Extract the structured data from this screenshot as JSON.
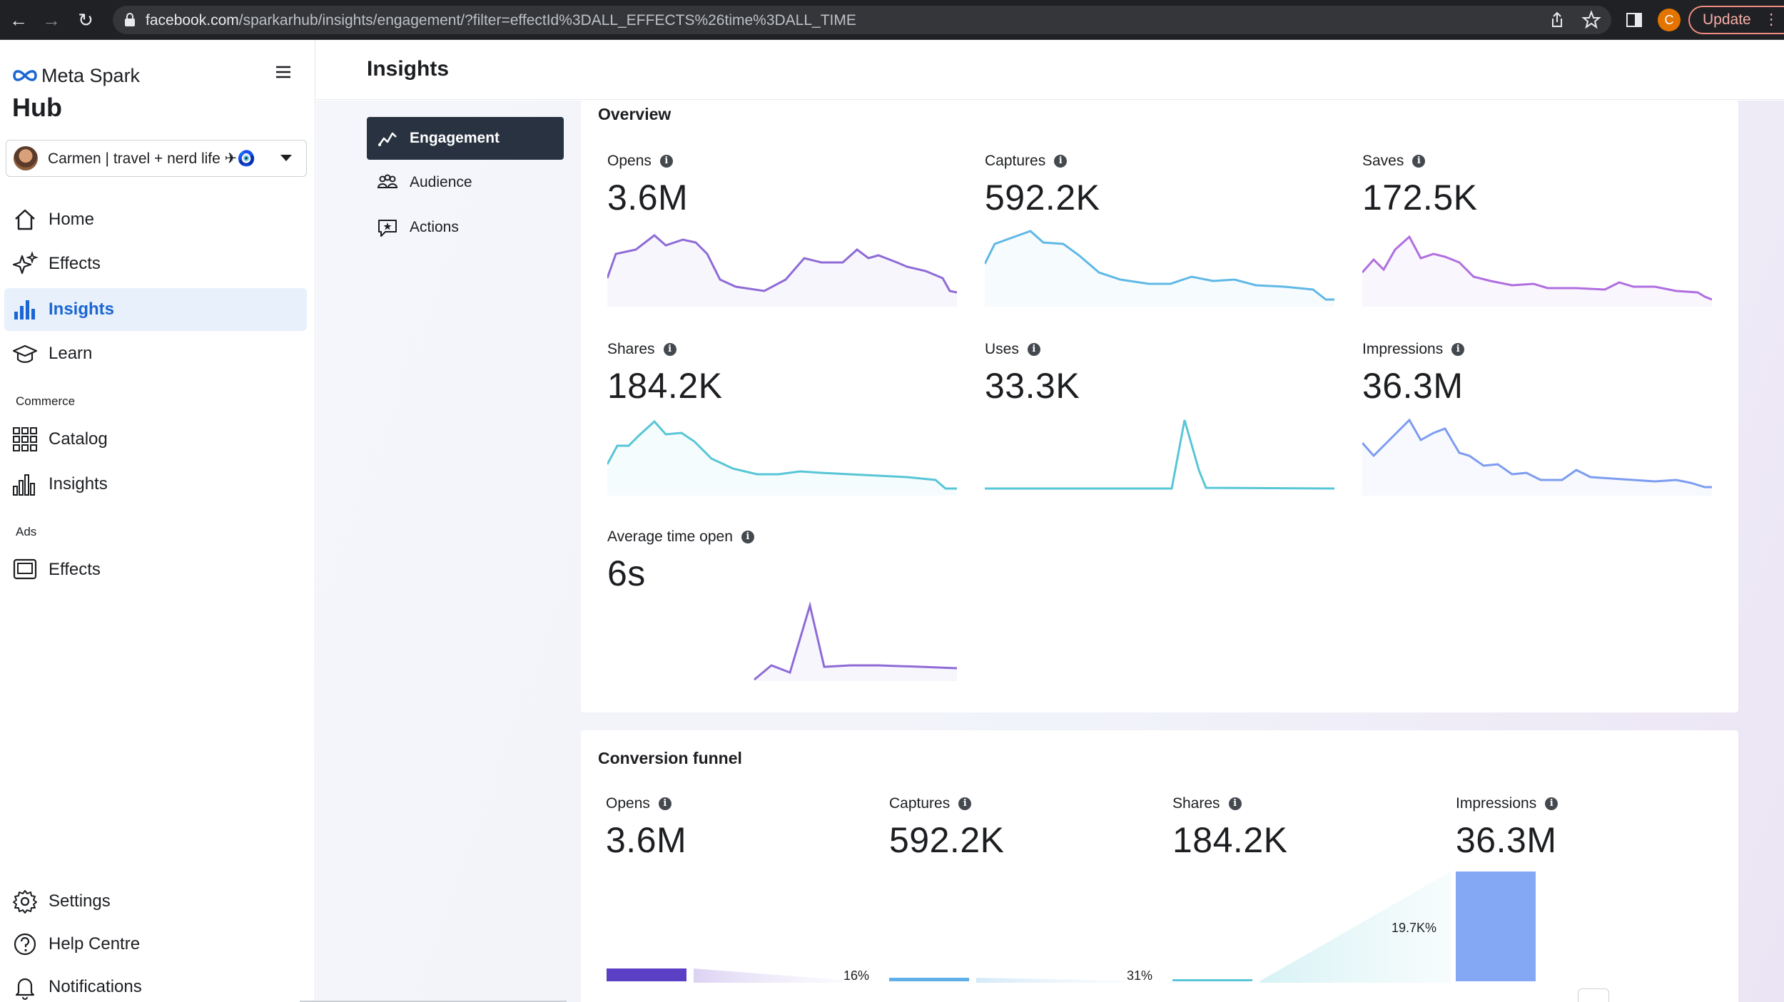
{
  "browser": {
    "url_host": "facebook.com",
    "url_path": "/sparkarhub/insights/engagement/?filter=effectId%3DALL_EFFECTS%26time%3DALL_TIME",
    "profile_initial": "C",
    "update_label": "Update"
  },
  "sidebar": {
    "brand": "Meta Spark",
    "hub": "Hub",
    "account_name": "Carmen | travel + nerd life ✈🧿",
    "items": [
      {
        "label": "Home",
        "icon": "home-icon"
      },
      {
        "label": "Effects",
        "icon": "sparkles-icon"
      },
      {
        "label": "Insights",
        "icon": "bar-chart-icon",
        "active": true
      },
      {
        "label": "Learn",
        "icon": "graduation-cap-icon"
      }
    ],
    "commerce_label": "Commerce",
    "commerce_items": [
      {
        "label": "Catalog",
        "icon": "grid-icon"
      },
      {
        "label": "Insights",
        "icon": "bar-chart-outline-icon"
      }
    ],
    "ads_label": "Ads",
    "ads_items": [
      {
        "label": "Effects",
        "icon": "monitor-icon"
      }
    ],
    "footer_items": [
      {
        "label": "Settings",
        "icon": "gear-icon"
      },
      {
        "label": "Help Centre",
        "icon": "help-icon"
      },
      {
        "label": "Notifications",
        "icon": "bell-icon"
      }
    ]
  },
  "header": {
    "title": "Insights"
  },
  "subnav": {
    "items": [
      {
        "label": "Engagement",
        "icon": "trend-icon",
        "active": true
      },
      {
        "label": "Audience",
        "icon": "people-icon"
      },
      {
        "label": "Actions",
        "icon": "chat-star-icon"
      }
    ]
  },
  "overview": {
    "title": "Overview",
    "metrics": [
      {
        "label": "Opens",
        "value": "3.6M",
        "color": "#8e6bd6"
      },
      {
        "label": "Captures",
        "value": "592.2K",
        "color": "#5fb8e6"
      },
      {
        "label": "Saves",
        "value": "172.5K",
        "color": "#b06ee0"
      },
      {
        "label": "Shares",
        "value": "184.2K",
        "color": "#57c6d6"
      },
      {
        "label": "Uses",
        "value": "33.3K",
        "color": "#57c6d6"
      },
      {
        "label": "Impressions",
        "value": "36.3M",
        "color": "#7d9cf0"
      },
      {
        "label": "Average time open",
        "value": "6s",
        "color": "#8e6bd6"
      }
    ]
  },
  "funnel": {
    "title": "Conversion funnel",
    "stages": [
      {
        "label": "Opens",
        "value": "3.6M",
        "color": "#5b3fc4",
        "pct_to_next": "16%"
      },
      {
        "label": "Captures",
        "value": "592.2K",
        "color": "#5fb0e8",
        "pct_to_next": "31%"
      },
      {
        "label": "Shares",
        "value": "184.2K",
        "color": "#57c6d6",
        "pct_to_next": "19.7K%"
      },
      {
        "label": "Impressions",
        "value": "36.3M",
        "color": "#85a8f5"
      }
    ]
  }
}
